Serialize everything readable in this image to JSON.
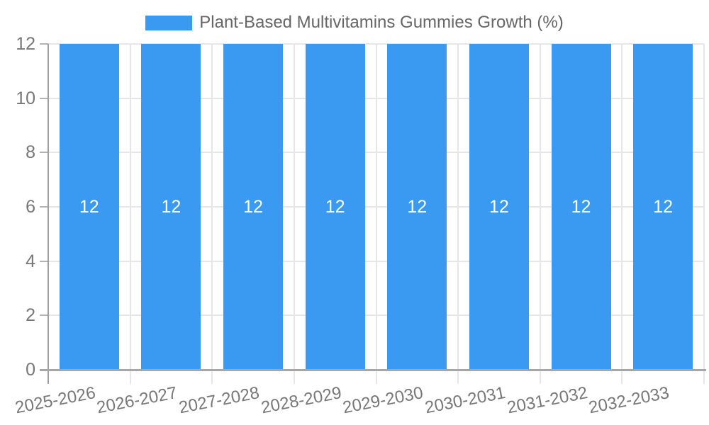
{
  "chart": {
    "legend": {
      "label": "Plant-Based Multivitamins Gummies Growth (%)"
    },
    "colors": {
      "bar": "#3A99F0",
      "grid": "#E6E6E6",
      "axis_y": "#9E9E9E",
      "axis_x": "#A6A6A6",
      "y_tick": "#B3B3B3",
      "tick_text": "#777777",
      "legend_text": "#666666",
      "value_label": "#FFFFFF"
    }
  },
  "chart_data": {
    "type": "bar",
    "title": "Plant-Based Multivitamins Gummies Growth (%)",
    "categories": [
      "2025-2026",
      "2026-2027",
      "2027-2028",
      "2028-2029",
      "2029-2030",
      "2030-2031",
      "2031-2032",
      "2032-2033"
    ],
    "values": [
      12,
      12,
      12,
      12,
      12,
      12,
      12,
      12
    ],
    "data_labels": [
      "12",
      "12",
      "12",
      "12",
      "12",
      "12",
      "12",
      "12"
    ],
    "xlabel": "",
    "ylabel": "",
    "ylim": [
      0,
      12
    ],
    "yticks": [
      0,
      2,
      4,
      6,
      8,
      10,
      12
    ],
    "grid": true,
    "legend_position": "top",
    "x_label_rotation_deg": -11
  }
}
